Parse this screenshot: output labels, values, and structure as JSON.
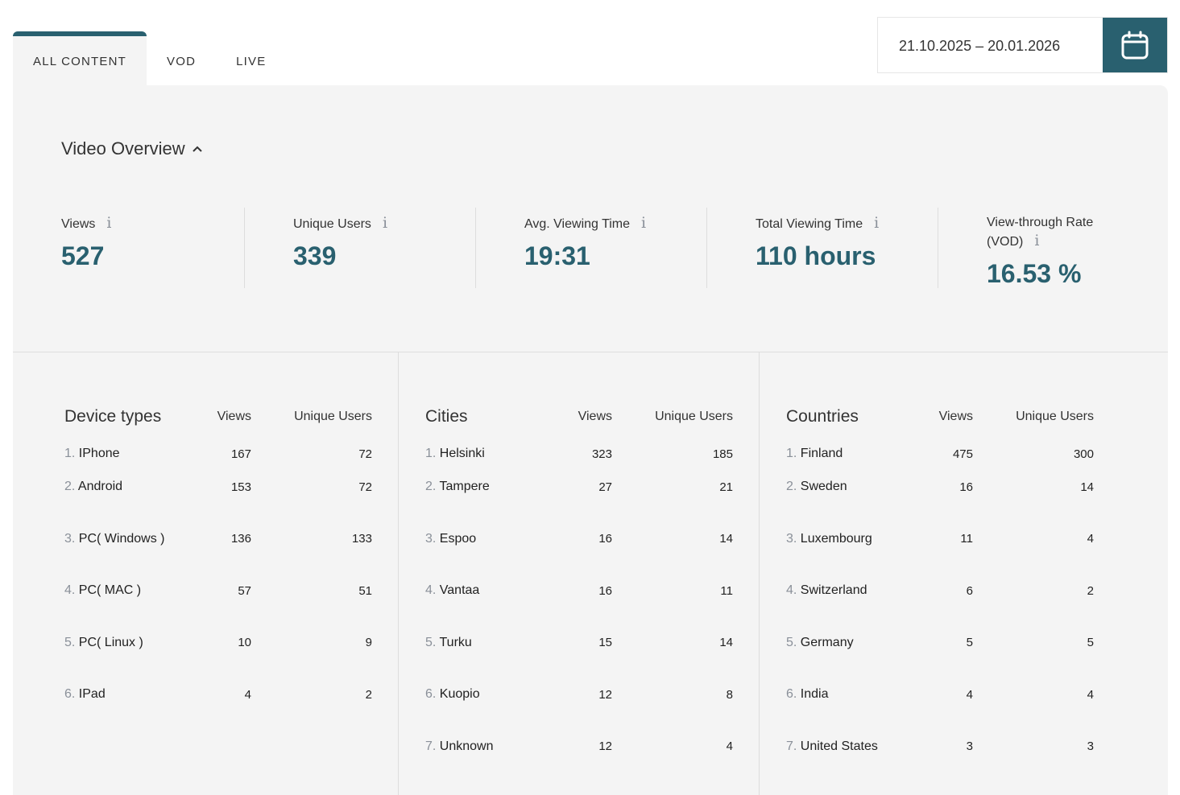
{
  "tabs": [
    {
      "label": "ALL CONTENT",
      "active": true
    },
    {
      "label": "VOD",
      "active": false
    },
    {
      "label": "LIVE",
      "active": false
    }
  ],
  "date_range": {
    "value": "21.10.2025 – 20.01.2026",
    "icon": "calendar-icon"
  },
  "colors": {
    "accent": "#29606f",
    "panel": "#f4f4f4"
  },
  "overview": {
    "title": "Video Overview",
    "stats": [
      {
        "label": "Views",
        "value": "527"
      },
      {
        "label": "Unique Users",
        "value": "339"
      },
      {
        "label": "Avg. Viewing Time",
        "value": "19:31"
      },
      {
        "label": "Total Viewing Time",
        "value": "110 hours"
      },
      {
        "label": "View-through Rate (VOD)",
        "value": "16.53 %"
      }
    ],
    "info_glyph": "i"
  },
  "tables": [
    {
      "title": "Device types",
      "col_views": "Views",
      "col_users": "Unique Users",
      "rows": [
        {
          "idx": "1.",
          "name": "IPhone",
          "views": "167",
          "users": "72"
        },
        {
          "idx": "2.",
          "name": "Android",
          "views": "153",
          "users": "72"
        },
        {
          "idx": "3.",
          "name": "PC( Windows )",
          "views": "136",
          "users": "133"
        },
        {
          "idx": "4.",
          "name": "PC( MAC )",
          "views": "57",
          "users": "51"
        },
        {
          "idx": "5.",
          "name": "PC( Linux )",
          "views": "10",
          "users": "9"
        },
        {
          "idx": "6.",
          "name": "IPad",
          "views": "4",
          "users": "2"
        }
      ]
    },
    {
      "title": "Cities",
      "col_views": "Views",
      "col_users": "Unique Users",
      "rows": [
        {
          "idx": "1.",
          "name": "Helsinki",
          "views": "323",
          "users": "185"
        },
        {
          "idx": "2.",
          "name": "Tampere",
          "views": "27",
          "users": "21"
        },
        {
          "idx": "3.",
          "name": "Espoo",
          "views": "16",
          "users": "14"
        },
        {
          "idx": "4.",
          "name": "Vantaa",
          "views": "16",
          "users": "11"
        },
        {
          "idx": "5.",
          "name": "Turku",
          "views": "15",
          "users": "14"
        },
        {
          "idx": "6.",
          "name": "Kuopio",
          "views": "12",
          "users": "8"
        },
        {
          "idx": "7.",
          "name": "Unknown",
          "views": "12",
          "users": "4"
        }
      ]
    },
    {
      "title": "Countries",
      "col_views": "Views",
      "col_users": "Unique Users",
      "rows": [
        {
          "idx": "1.",
          "name": "Finland",
          "views": "475",
          "users": "300"
        },
        {
          "idx": "2.",
          "name": "Sweden",
          "views": "16",
          "users": "14"
        },
        {
          "idx": "3.",
          "name": "Luxembourg",
          "views": "11",
          "users": "4"
        },
        {
          "idx": "4.",
          "name": "Switzerland",
          "views": "6",
          "users": "2"
        },
        {
          "idx": "5.",
          "name": "Germany",
          "views": "5",
          "users": "5"
        },
        {
          "idx": "6.",
          "name": "India",
          "views": "4",
          "users": "4"
        },
        {
          "idx": "7.",
          "name": "United States",
          "views": "3",
          "users": "3"
        }
      ]
    }
  ]
}
